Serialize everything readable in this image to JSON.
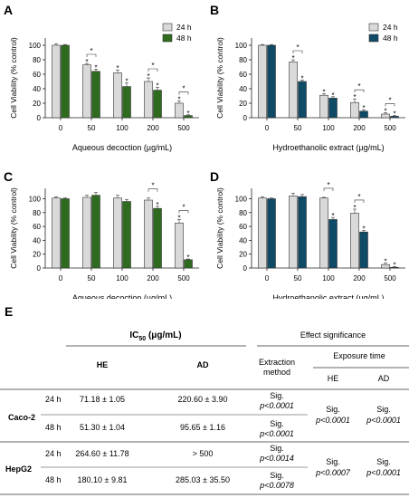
{
  "colors": {
    "bar_24h": "#d9d9d9",
    "bar_48h_green": "#2e6b1f",
    "bar_48h_blue": "#0f4a66",
    "axis": "#222222",
    "table_line": "#333333"
  },
  "chart_data": [
    {
      "panel_label": "A",
      "type": "bar",
      "ylabel": "Cell Viability (% control)",
      "xlabel": "Aqueous decoction (µg/mL)",
      "categories": [
        "0",
        "50",
        "100",
        "200",
        "500"
      ],
      "ylim": [
        0,
        110
      ],
      "yticks": [
        "0",
        "20",
        "40",
        "60",
        "80",
        "100"
      ],
      "legend": "top-right",
      "series": [
        {
          "name": "24 h",
          "values": [
            100,
            73,
            62,
            50,
            20
          ],
          "errors": [
            2,
            2,
            4,
            5,
            3
          ]
        },
        {
          "name": "48 h",
          "values": [
            100,
            64,
            43,
            38,
            3
          ],
          "errors": [
            1,
            3,
            5,
            4,
            1
          ]
        }
      ],
      "star_markers": [
        "*",
        "*",
        "*",
        "*",
        "*",
        "*",
        "*",
        "*"
      ],
      "significance_brackets": [
        "*",
        "*",
        "*"
      ]
    },
    {
      "panel_label": "B",
      "type": "bar",
      "ylabel": "Cell Viability (% control)",
      "xlabel": "Hydroethanolic extract (µg/mL)",
      "categories": [
        "0",
        "50",
        "100",
        "200",
        "500"
      ],
      "ylim": [
        0,
        110
      ],
      "yticks": [
        "0",
        "20",
        "40",
        "60",
        "80",
        "100"
      ],
      "legend": "top-right",
      "series": [
        {
          "name": "24 h",
          "values": [
            100,
            77,
            31,
            21,
            5
          ],
          "errors": [
            1,
            3,
            2,
            5,
            2
          ]
        },
        {
          "name": "48 h",
          "values": [
            100,
            50,
            27,
            9,
            2
          ],
          "errors": [
            1,
            2,
            2,
            2,
            1
          ]
        }
      ],
      "star_markers": [
        "*",
        "*",
        "*",
        "*",
        "*",
        "*",
        "*",
        "*"
      ],
      "significance_brackets": [
        "*",
        "*",
        "*"
      ]
    },
    {
      "panel_label": "C",
      "type": "bar",
      "ylabel": "Cell Viability (% control)",
      "xlabel": "Aqueous decoction (µg/mL)",
      "categories": [
        "0",
        "50",
        "100",
        "200",
        "500"
      ],
      "ylim": [
        0,
        115
      ],
      "yticks": [
        "0",
        "20",
        "40",
        "60",
        "80",
        "100"
      ],
      "series": [
        {
          "name": "24 h",
          "values": [
            101,
            102,
            101,
            98,
            65
          ],
          "errors": [
            2,
            3,
            4,
            3,
            5
          ]
        },
        {
          "name": "48 h",
          "values": [
            100,
            105,
            96,
            86,
            12
          ],
          "errors": [
            1,
            4,
            3,
            3,
            1
          ]
        }
      ],
      "star_markers": [
        "*",
        "*",
        "*"
      ],
      "significance_brackets": [
        "*",
        "*"
      ]
    },
    {
      "panel_label": "D",
      "type": "bar",
      "ylabel": "Cell Viability (% control)",
      "xlabel": "Hydroethanolic extract (µg/mL)",
      "categories": [
        "0",
        "50",
        "100",
        "200",
        "500"
      ],
      "ylim": [
        0,
        115
      ],
      "yticks": [
        "0",
        "20",
        "40",
        "60",
        "80",
        "100"
      ],
      "series": [
        {
          "name": "24 h",
          "values": [
            101,
            104,
            101,
            79,
            5
          ],
          "errors": [
            2,
            4,
            1,
            6,
            2
          ]
        },
        {
          "name": "48 h",
          "values": [
            100,
            103,
            70,
            52,
            1
          ],
          "errors": [
            1,
            3,
            3,
            2,
            1
          ]
        }
      ],
      "star_markers": [
        "*",
        "*",
        "*",
        "*",
        "*"
      ],
      "significance_brackets": [
        "*",
        "*"
      ]
    }
  ],
  "table": {
    "panel_label": "E",
    "ic50_header": "IC",
    "ic50_sub": "50",
    "ic50_unit": " (μg/mL)",
    "effect_header": "Effect significance",
    "col_he": "HE",
    "col_ad": "AD",
    "extraction_line1": "Extraction",
    "extraction_line2": "method",
    "exposure_header": "Exposure time",
    "exp_he": "HE",
    "exp_ad": "AD",
    "sig": "Sig.",
    "groups": [
      {
        "name": "Caco-2",
        "rows": [
          {
            "time": "24 h",
            "he": "71.18 ± 1.05",
            "ad": "220.60 ± 3.90",
            "extraction_p": "p<0.0001"
          },
          {
            "time": "48 h",
            "he": "51.30 ± 1.04",
            "ad": "95.65 ± 1.16",
            "extraction_p": "p<0.0001"
          }
        ],
        "exposure_he_p": "p<0.0001",
        "exposure_ad_p": "p<0.0001"
      },
      {
        "name": "HepG2",
        "rows": [
          {
            "time": "24 h",
            "he": "264.60 ± 11.78",
            "ad": "> 500",
            "extraction_p": "p<0.0014"
          },
          {
            "time": "48 h",
            "he": "180.10 ± 9.81",
            "ad": "285.03 ± 35.50",
            "extraction_p": "p<0.0078"
          }
        ],
        "exposure_he_p": "p<0.0007",
        "exposure_ad_p": "p<0.0001"
      }
    ]
  }
}
